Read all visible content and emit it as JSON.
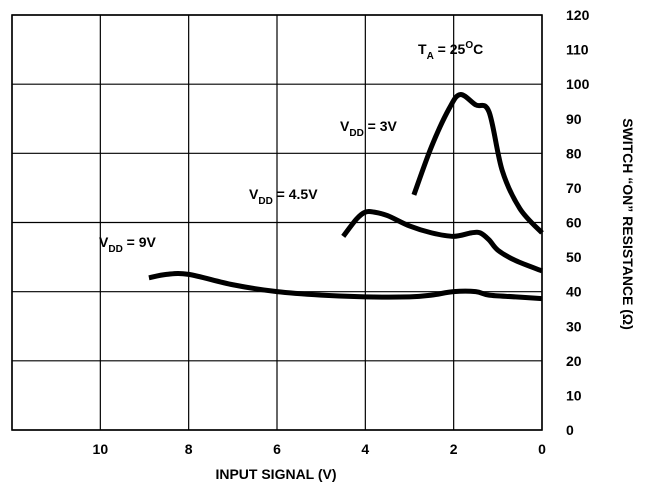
{
  "chart_data": {
    "type": "line",
    "title": "",
    "xlabel": "INPUT SIGNAL (V)",
    "ylabel": "SWITCH “ON” RESISTANCE (Ω)",
    "xlim": [
      12,
      0
    ],
    "ylim": [
      0,
      120
    ],
    "x_ticks": [
      10,
      8,
      6,
      4,
      2,
      0
    ],
    "y_ticks": [
      0,
      10,
      20,
      30,
      40,
      50,
      60,
      70,
      80,
      90,
      100,
      110,
      120
    ],
    "grid": true,
    "annotations": [
      {
        "main": "T",
        "sub": "A",
        "tail": " = 25",
        "sup": "O",
        "end": "C"
      },
      {
        "main": "V",
        "sub": "DD",
        "tail": " = 3V"
      },
      {
        "main": "V",
        "sub": "DD",
        "tail": " = 4.5V"
      },
      {
        "main": "V",
        "sub": "DD",
        "tail": " = 9V"
      }
    ],
    "series": [
      {
        "name": "VDD = 3V",
        "color": "#000000",
        "x": [
          2.9,
          2.5,
          2.1,
          1.85,
          1.5,
          1.2,
          0.9,
          0.5,
          0
        ],
        "y": [
          68,
          82,
          93,
          97,
          94,
          92,
          75,
          64,
          57
        ]
      },
      {
        "name": "VDD = 4.5V",
        "color": "#000000",
        "x": [
          4.5,
          4.2,
          4.0,
          3.8,
          3.5,
          3.0,
          2.5,
          2.0,
          1.6,
          1.4,
          1.2,
          1.0,
          0.6,
          0
        ],
        "y": [
          56,
          61,
          63,
          63,
          62,
          59,
          57,
          56,
          57,
          57,
          55,
          52,
          49,
          46
        ]
      },
      {
        "name": "VDD = 9V",
        "color": "#000000",
        "x": [
          8.9,
          8.5,
          8.0,
          7.0,
          6.0,
          5.0,
          4.0,
          3.0,
          2.5,
          2.0,
          1.5,
          1.2,
          0.6,
          0
        ],
        "y": [
          44,
          45,
          45,
          42,
          40,
          39,
          38.5,
          38.5,
          39,
          40,
          40,
          39,
          38.5,
          38
        ]
      }
    ]
  }
}
